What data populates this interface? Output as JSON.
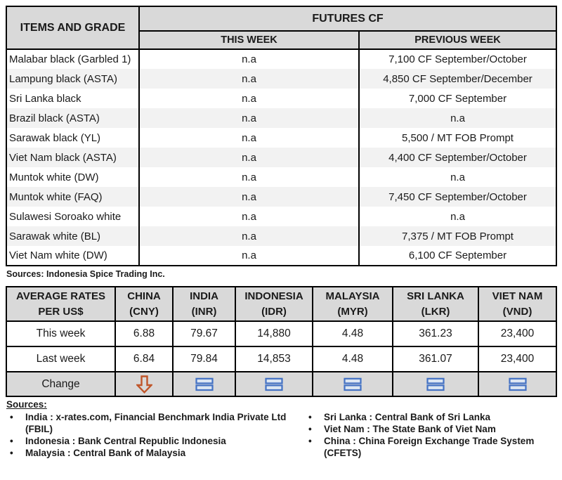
{
  "colors": {
    "header_bg": "#D9D9D9",
    "stripe_bg": "#F2F2F2",
    "border": "#000000",
    "text": "#1A1A1A",
    "arrow_down_orange": "#C0562A",
    "equals_blue": "#4472C4",
    "equals_fill": "#DCE6F2"
  },
  "futures_table": {
    "items_header": "ITEMS AND GRADE",
    "group_header": "FUTURES CF",
    "this_week_header": "THIS WEEK",
    "previous_week_header": "PREVIOUS WEEK",
    "rows": [
      {
        "item": "Malabar black (Garbled 1)",
        "this_week": "n.a",
        "prev_week": "7,100 CF September/October"
      },
      {
        "item": "Lampung black (ASTA)",
        "this_week": "n.a",
        "prev_week": "4,850 CF September/December"
      },
      {
        "item": "Sri Lanka black",
        "this_week": "n.a",
        "prev_week": "7,000 CF September"
      },
      {
        "item": "Brazil black (ASTA)",
        "this_week": "n.a",
        "prev_week": "n.a"
      },
      {
        "item": "Sarawak black (YL)",
        "this_week": "n.a",
        "prev_week": "5,500 / MT FOB Prompt"
      },
      {
        "item": "Viet Nam black (ASTA)",
        "this_week": "n.a",
        "prev_week": "4,400 CF September/October"
      },
      {
        "item": "Muntok white (DW)",
        "this_week": "n.a",
        "prev_week": "n.a"
      },
      {
        "item": "Muntok white (FAQ)",
        "this_week": "n.a",
        "prev_week": "7,450 CF September/October"
      },
      {
        "item": "Sulawesi Soroako white",
        "this_week": "n.a",
        "prev_week": "n.a"
      },
      {
        "item": "Sarawak white (BL)",
        "this_week": "n.a",
        "prev_week": "7,375 / MT FOB Prompt"
      },
      {
        "item": "Viet Nam white (DW)",
        "this_week": "n.a",
        "prev_week": "6,100 CF September"
      }
    ],
    "source_note": "Sources: Indonesia Spice Trading Inc."
  },
  "rates_table": {
    "label_line1": "AVERAGE RATES",
    "label_line2": "PER US$",
    "this_week_label": "This week",
    "last_week_label": "Last week",
    "change_label": "Change",
    "columns": [
      {
        "country": "CHINA",
        "code": "(CNY)",
        "this_week": "6.88",
        "last_week": "6.84",
        "change": "down"
      },
      {
        "country": "INDIA",
        "code": "(INR)",
        "this_week": "79.67",
        "last_week": "79.84",
        "change": "equal"
      },
      {
        "country": "INDONESIA",
        "code": "(IDR)",
        "this_week": "14,880",
        "last_week": "14,853",
        "change": "equal"
      },
      {
        "country": "MALAYSIA",
        "code": "(MYR)",
        "this_week": "4.48",
        "last_week": "4.48",
        "change": "equal"
      },
      {
        "country": "SRI LANKA",
        "code": "(LKR)",
        "this_week": "361.23",
        "last_week": "361.07",
        "change": "equal"
      },
      {
        "country": "VIET NAM",
        "code": "(VND)",
        "this_week": "23,400",
        "last_week": "23,400",
        "change": "equal"
      }
    ]
  },
  "sources_section": {
    "title": "Sources:",
    "left_items": [
      "India : x-rates.com, Financial Benchmark India Private Ltd (FBIL)",
      "Indonesia : Bank Central Republic Indonesia",
      "Malaysia : Central Bank of Malaysia"
    ],
    "right_items": [
      "Sri Lanka : Central Bank of Sri Lanka",
      "Viet Nam : The State Bank of Viet Nam",
      "China : China Foreign Exchange Trade System (CFETS)"
    ]
  }
}
